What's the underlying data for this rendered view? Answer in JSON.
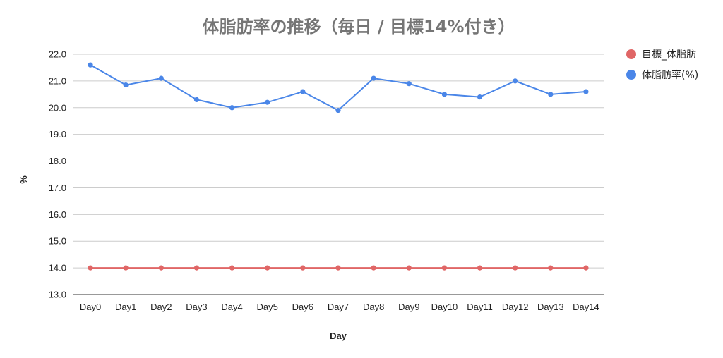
{
  "chart_data": {
    "type": "line",
    "title": "体脂肪率の推移（毎日 / 目標14%付き）",
    "xlabel": "Day",
    "ylabel": "%",
    "categories": [
      "Day0",
      "Day1",
      "Day2",
      "Day3",
      "Day4",
      "Day5",
      "Day6",
      "Day7",
      "Day8",
      "Day9",
      "Day10",
      "Day11",
      "Day12",
      "Day13",
      "Day14"
    ],
    "ylim": [
      13.0,
      22.0
    ],
    "yticks": [
      "13.0",
      "14.0",
      "15.0",
      "16.0",
      "17.0",
      "18.0",
      "19.0",
      "20.0",
      "21.0",
      "22.0"
    ],
    "grid": true,
    "legend_position": "right",
    "series": [
      {
        "name": "目標_体脂肪",
        "color": "#e06666",
        "values": [
          14.0,
          14.0,
          14.0,
          14.0,
          14.0,
          14.0,
          14.0,
          14.0,
          14.0,
          14.0,
          14.0,
          14.0,
          14.0,
          14.0,
          14.0
        ]
      },
      {
        "name": "体脂肪率(%)",
        "color": "#4a86e8",
        "values": [
          21.6,
          20.85,
          21.1,
          20.3,
          20.0,
          20.2,
          20.6,
          19.9,
          21.1,
          20.9,
          20.5,
          20.4,
          21.0,
          20.5,
          20.6
        ]
      }
    ]
  }
}
